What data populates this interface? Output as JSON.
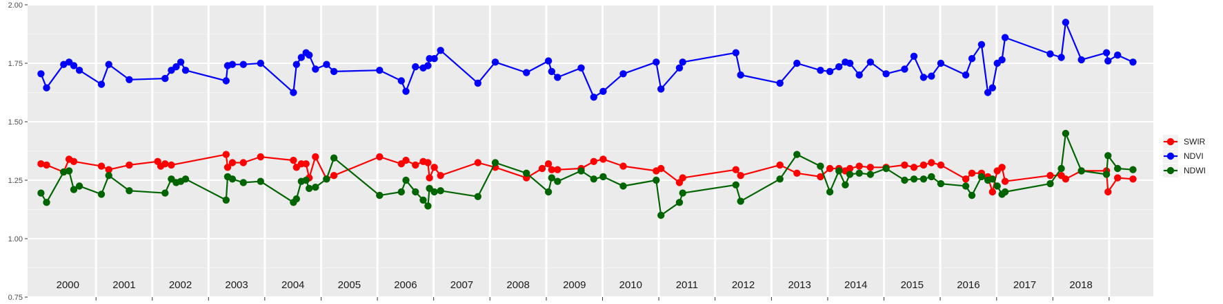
{
  "chart_data": {
    "type": "line",
    "title": "",
    "xlabel": "",
    "ylabel": "",
    "ylim": [
      0.75,
      2.0
    ],
    "xlim": [
      "2000-01-01",
      "2018-12-31"
    ],
    "yticks": [
      "0.75",
      "1.00",
      "1.25",
      "1.50",
      "1.75",
      "2.00"
    ],
    "year_labels": [
      "2000",
      "2001",
      "2002",
      "2003",
      "2004",
      "2005",
      "2006",
      "2007",
      "2008",
      "2009",
      "2010",
      "2011",
      "2012",
      "2013",
      "2014",
      "2015",
      "2016",
      "2017",
      "2018"
    ],
    "grid": true,
    "legend_position": "right",
    "series": [
      {
        "name": "SWIR",
        "color": "#ff0000",
        "points": [
          [
            "2000-01-10",
            1.32
          ],
          [
            "2000-02-15",
            1.315
          ],
          [
            "2000-06-05",
            1.285
          ],
          [
            "2000-07-10",
            1.34
          ],
          [
            "2000-08-10",
            1.33
          ],
          [
            "2001-02-05",
            1.31
          ],
          [
            "2001-03-25",
            1.295
          ],
          [
            "2001-08-05",
            1.315
          ],
          [
            "2002-02-05",
            1.33
          ],
          [
            "2002-02-25",
            1.31
          ],
          [
            "2002-03-25",
            1.32
          ],
          [
            "2002-05-05",
            1.315
          ],
          [
            "2003-04-25",
            1.36
          ],
          [
            "2003-05-05",
            1.305
          ],
          [
            "2003-06-05",
            1.325
          ],
          [
            "2003-08-15",
            1.325
          ],
          [
            "2003-12-05",
            1.35
          ],
          [
            "2004-07-05",
            1.335
          ],
          [
            "2004-07-25",
            1.305
          ],
          [
            "2004-08-25",
            1.32
          ],
          [
            "2004-09-25",
            1.32
          ],
          [
            "2004-10-15",
            1.26
          ],
          [
            "2004-11-25",
            1.35
          ],
          [
            "2005-02-05",
            1.255
          ],
          [
            "2005-03-25",
            1.27
          ],
          [
            "2006-01-15",
            1.35
          ],
          [
            "2006-06-05",
            1.32
          ],
          [
            "2006-07-05",
            1.335
          ],
          [
            "2006-09-05",
            1.315
          ],
          [
            "2006-10-25",
            1.33
          ],
          [
            "2006-11-25",
            1.325
          ],
          [
            "2006-12-05",
            1.26
          ],
          [
            "2007-01-05",
            1.305
          ],
          [
            "2007-02-15",
            1.27
          ],
          [
            "2007-10-15",
            1.325
          ],
          [
            "2008-02-05",
            1.305
          ],
          [
            "2008-08-25",
            1.26
          ],
          [
            "2008-12-05",
            1.3
          ],
          [
            "2009-01-15",
            1.32
          ],
          [
            "2009-02-05",
            1.295
          ],
          [
            "2009-03-15",
            1.295
          ],
          [
            "2009-08-15",
            1.3
          ],
          [
            "2009-11-05",
            1.33
          ],
          [
            "2010-01-05",
            1.34
          ],
          [
            "2010-05-15",
            1.31
          ],
          [
            "2010-12-15",
            1.29
          ],
          [
            "2011-01-15",
            1.3
          ],
          [
            "2011-05-15",
            1.24
          ],
          [
            "2011-06-05",
            1.26
          ],
          [
            "2012-05-15",
            1.295
          ],
          [
            "2012-06-15",
            1.27
          ],
          [
            "2013-02-25",
            1.315
          ],
          [
            "2013-06-15",
            1.28
          ],
          [
            "2013-11-15",
            1.265
          ],
          [
            "2014-01-15",
            1.3
          ],
          [
            "2014-03-15",
            1.3
          ],
          [
            "2014-04-25",
            1.29
          ],
          [
            "2014-05-25",
            1.3
          ],
          [
            "2014-07-25",
            1.31
          ],
          [
            "2014-10-05",
            1.305
          ],
          [
            "2015-01-15",
            1.305
          ],
          [
            "2015-05-15",
            1.315
          ],
          [
            "2015-07-15",
            1.305
          ],
          [
            "2015-09-15",
            1.315
          ],
          [
            "2015-11-05",
            1.325
          ],
          [
            "2016-01-05",
            1.315
          ],
          [
            "2016-06-15",
            1.255
          ],
          [
            "2016-07-25",
            1.28
          ],
          [
            "2016-09-25",
            1.28
          ],
          [
            "2016-11-05",
            1.265
          ],
          [
            "2016-12-05",
            1.2
          ],
          [
            "2017-01-05",
            1.29
          ],
          [
            "2017-02-05",
            1.305
          ],
          [
            "2017-02-25",
            1.245
          ],
          [
            "2017-12-15",
            1.27
          ],
          [
            "2018-02-25",
            1.27
          ],
          [
            "2018-03-25",
            1.255
          ],
          [
            "2018-07-05",
            1.29
          ],
          [
            "2018-12-15",
            1.29
          ],
          [
            "2018-12-25",
            1.2
          ],
          [
            "2019-02-25",
            1.26
          ],
          [
            "2019-06-05",
            1.255
          ]
        ]
      },
      {
        "name": "NDVI",
        "color": "#0000ff",
        "points": [
          [
            "2000-01-10",
            1.705
          ],
          [
            "2000-02-15",
            1.645
          ],
          [
            "2000-06-05",
            1.745
          ],
          [
            "2000-07-10",
            1.755
          ],
          [
            "2000-08-10",
            1.74
          ],
          [
            "2000-09-15",
            1.72
          ],
          [
            "2001-02-05",
            1.66
          ],
          [
            "2001-03-25",
            1.745
          ],
          [
            "2001-08-05",
            1.68
          ],
          [
            "2002-03-25",
            1.685
          ],
          [
            "2002-05-05",
            1.72
          ],
          [
            "2002-06-05",
            1.735
          ],
          [
            "2002-07-05",
            1.755
          ],
          [
            "2002-08-05",
            1.72
          ],
          [
            "2003-04-25",
            1.675
          ],
          [
            "2003-05-05",
            1.74
          ],
          [
            "2003-06-05",
            1.745
          ],
          [
            "2003-08-15",
            1.745
          ],
          [
            "2003-12-05",
            1.75
          ],
          [
            "2004-07-05",
            1.625
          ],
          [
            "2004-07-25",
            1.745
          ],
          [
            "2004-08-25",
            1.775
          ],
          [
            "2004-09-25",
            1.795
          ],
          [
            "2004-10-15",
            1.785
          ],
          [
            "2004-11-25",
            1.725
          ],
          [
            "2005-02-05",
            1.745
          ],
          [
            "2005-03-25",
            1.715
          ],
          [
            "2006-01-15",
            1.72
          ],
          [
            "2006-06-05",
            1.675
          ],
          [
            "2006-07-05",
            1.63
          ],
          [
            "2006-09-05",
            1.735
          ],
          [
            "2006-10-25",
            1.73
          ],
          [
            "2006-11-25",
            1.74
          ],
          [
            "2006-12-05",
            1.77
          ],
          [
            "2007-01-05",
            1.77
          ],
          [
            "2007-02-15",
            1.805
          ],
          [
            "2007-10-15",
            1.665
          ],
          [
            "2008-02-05",
            1.755
          ],
          [
            "2008-08-25",
            1.71
          ],
          [
            "2009-01-15",
            1.76
          ],
          [
            "2009-02-05",
            1.715
          ],
          [
            "2009-03-15",
            1.69
          ],
          [
            "2009-08-15",
            1.73
          ],
          [
            "2009-11-05",
            1.605
          ],
          [
            "2010-01-05",
            1.63
          ],
          [
            "2010-05-15",
            1.705
          ],
          [
            "2010-12-15",
            1.755
          ],
          [
            "2011-01-15",
            1.64
          ],
          [
            "2011-05-15",
            1.73
          ],
          [
            "2011-06-05",
            1.755
          ],
          [
            "2012-05-15",
            1.795
          ],
          [
            "2012-06-15",
            1.7
          ],
          [
            "2013-02-25",
            1.665
          ],
          [
            "2013-06-15",
            1.75
          ],
          [
            "2013-11-15",
            1.72
          ],
          [
            "2014-01-15",
            1.715
          ],
          [
            "2014-03-15",
            1.735
          ],
          [
            "2014-04-25",
            1.755
          ],
          [
            "2014-05-25",
            1.75
          ],
          [
            "2014-07-25",
            1.7
          ],
          [
            "2014-10-05",
            1.755
          ],
          [
            "2015-01-15",
            1.705
          ],
          [
            "2015-05-15",
            1.725
          ],
          [
            "2015-07-15",
            1.78
          ],
          [
            "2015-09-15",
            1.69
          ],
          [
            "2015-11-05",
            1.695
          ],
          [
            "2016-01-05",
            1.75
          ],
          [
            "2016-06-15",
            1.7
          ],
          [
            "2016-07-25",
            1.77
          ],
          [
            "2016-09-25",
            1.83
          ],
          [
            "2016-11-05",
            1.625
          ],
          [
            "2016-12-05",
            1.645
          ],
          [
            "2017-01-05",
            1.75
          ],
          [
            "2017-02-05",
            1.765
          ],
          [
            "2017-02-25",
            1.86
          ],
          [
            "2017-12-15",
            1.79
          ],
          [
            "2018-02-25",
            1.775
          ],
          [
            "2018-03-25",
            1.925
          ],
          [
            "2018-07-05",
            1.765
          ],
          [
            "2018-12-15",
            1.795
          ],
          [
            "2018-12-25",
            1.76
          ],
          [
            "2019-02-25",
            1.785
          ],
          [
            "2019-06-05",
            1.755
          ]
        ]
      },
      {
        "name": "NDWI",
        "color": "#006400",
        "points": [
          [
            "2000-01-10",
            1.195
          ],
          [
            "2000-02-15",
            1.155
          ],
          [
            "2000-06-05",
            1.285
          ],
          [
            "2000-07-10",
            1.29
          ],
          [
            "2000-08-10",
            1.21
          ],
          [
            "2000-09-15",
            1.225
          ],
          [
            "2001-02-05",
            1.19
          ],
          [
            "2001-03-25",
            1.27
          ],
          [
            "2001-08-05",
            1.205
          ],
          [
            "2002-03-25",
            1.195
          ],
          [
            "2002-05-05",
            1.255
          ],
          [
            "2002-06-05",
            1.24
          ],
          [
            "2002-07-05",
            1.245
          ],
          [
            "2002-08-05",
            1.255
          ],
          [
            "2003-04-25",
            1.165
          ],
          [
            "2003-05-05",
            1.265
          ],
          [
            "2003-06-05",
            1.255
          ],
          [
            "2003-08-15",
            1.24
          ],
          [
            "2003-12-05",
            1.245
          ],
          [
            "2004-07-05",
            1.155
          ],
          [
            "2004-07-25",
            1.17
          ],
          [
            "2004-08-25",
            1.245
          ],
          [
            "2004-09-25",
            1.25
          ],
          [
            "2004-10-15",
            1.215
          ],
          [
            "2004-11-25",
            1.22
          ],
          [
            "2005-02-05",
            1.255
          ],
          [
            "2005-03-25",
            1.345
          ],
          [
            "2006-01-15",
            1.185
          ],
          [
            "2006-06-05",
            1.2
          ],
          [
            "2006-07-05",
            1.25
          ],
          [
            "2006-09-05",
            1.2
          ],
          [
            "2006-10-25",
            1.165
          ],
          [
            "2006-11-25",
            1.14
          ],
          [
            "2006-12-05",
            1.215
          ],
          [
            "2007-01-05",
            1.2
          ],
          [
            "2007-02-15",
            1.205
          ],
          [
            "2007-10-15",
            1.18
          ],
          [
            "2008-02-05",
            1.325
          ],
          [
            "2008-08-25",
            1.28
          ],
          [
            "2009-01-15",
            1.2
          ],
          [
            "2009-02-05",
            1.26
          ],
          [
            "2009-03-15",
            1.245
          ],
          [
            "2009-08-15",
            1.29
          ],
          [
            "2009-11-05",
            1.255
          ],
          [
            "2010-01-05",
            1.265
          ],
          [
            "2010-05-15",
            1.225
          ],
          [
            "2010-12-15",
            1.25
          ],
          [
            "2011-01-15",
            1.1
          ],
          [
            "2011-05-15",
            1.155
          ],
          [
            "2011-06-05",
            1.195
          ],
          [
            "2012-05-15",
            1.23
          ],
          [
            "2012-06-15",
            1.16
          ],
          [
            "2013-02-25",
            1.255
          ],
          [
            "2013-06-15",
            1.36
          ],
          [
            "2013-11-15",
            1.31
          ],
          [
            "2014-01-15",
            1.2
          ],
          [
            "2014-03-15",
            1.29
          ],
          [
            "2014-04-25",
            1.23
          ],
          [
            "2014-05-25",
            1.275
          ],
          [
            "2014-07-25",
            1.28
          ],
          [
            "2014-10-05",
            1.275
          ],
          [
            "2015-01-15",
            1.3
          ],
          [
            "2015-05-15",
            1.25
          ],
          [
            "2015-07-15",
            1.255
          ],
          [
            "2015-09-15",
            1.255
          ],
          [
            "2015-11-05",
            1.265
          ],
          [
            "2016-01-05",
            1.235
          ],
          [
            "2016-06-15",
            1.225
          ],
          [
            "2016-07-25",
            1.185
          ],
          [
            "2016-09-25",
            1.265
          ],
          [
            "2016-11-05",
            1.25
          ],
          [
            "2016-12-05",
            1.255
          ],
          [
            "2017-01-05",
            1.225
          ],
          [
            "2017-02-05",
            1.19
          ],
          [
            "2017-02-25",
            1.2
          ],
          [
            "2017-12-15",
            1.235
          ],
          [
            "2018-02-25",
            1.3
          ],
          [
            "2018-03-25",
            1.45
          ],
          [
            "2018-07-05",
            1.29
          ],
          [
            "2018-12-15",
            1.275
          ],
          [
            "2018-12-25",
            1.355
          ],
          [
            "2019-02-25",
            1.3
          ],
          [
            "2019-06-05",
            1.295
          ]
        ]
      }
    ]
  }
}
